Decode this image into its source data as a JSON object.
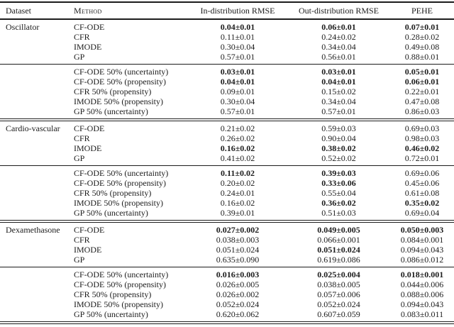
{
  "page": {
    "background_color": "#ffffff",
    "text_color": "#1c1c1c"
  },
  "table": {
    "headers": [
      {
        "label": "Dataset",
        "smallcaps": false
      },
      {
        "label": "Method",
        "smallcaps": true
      },
      {
        "label": "In-distribution RMSE",
        "smallcaps": false
      },
      {
        "label": "Out-distribution RMSE",
        "smallcaps": false
      },
      {
        "label": "PEHE",
        "smallcaps": false
      }
    ],
    "sections": [
      {
        "dataset": "Oscillator",
        "blocks": [
          {
            "rows": [
              {
                "method": "CF-ODE",
                "values": [
                  "0.04±0.01",
                  "0.06±0.01",
                  "0.07±0.01"
                ],
                "bold": [
                  true,
                  true,
                  true
                ]
              },
              {
                "method": "CFR",
                "values": [
                  "0.11±0.01",
                  "0.24±0.02",
                  "0.28±0.02"
                ],
                "bold": [
                  false,
                  false,
                  false
                ]
              },
              {
                "method": "IMODE",
                "values": [
                  "0.30±0.04",
                  "0.34±0.04",
                  "0.49±0.08"
                ],
                "bold": [
                  false,
                  false,
                  false
                ]
              },
              {
                "method": "GP",
                "values": [
                  "0.57±0.01",
                  "0.56±0.01",
                  "0.88±0.01"
                ],
                "bold": [
                  false,
                  false,
                  false
                ]
              }
            ]
          },
          {
            "rows": [
              {
                "method": "CF-ODE 50% (uncertainty)",
                "values": [
                  "0.03±0.01",
                  "0.03±0.01",
                  "0.05±0.01"
                ],
                "bold": [
                  true,
                  true,
                  true
                ]
              },
              {
                "method": "CF-ODE 50% (propensity)",
                "values": [
                  "0.04±0.01",
                  "0.04±0.01",
                  "0.06±0.01"
                ],
                "bold": [
                  true,
                  true,
                  true
                ]
              },
              {
                "method": "CFR 50% (propensity)",
                "values": [
                  "0.09±0.01",
                  "0.15±0.02",
                  "0.22±0.01"
                ],
                "bold": [
                  false,
                  false,
                  false
                ]
              },
              {
                "method": "IMODE 50% (propensity)",
                "values": [
                  "0.30±0.04",
                  "0.34±0.04",
                  "0.47±0.08"
                ],
                "bold": [
                  false,
                  false,
                  false
                ]
              },
              {
                "method": "GP 50% (uncertainty)",
                "values": [
                  "0.57±0.01",
                  "0.57±0.01",
                  "0.86±0.03"
                ],
                "bold": [
                  false,
                  false,
                  false
                ]
              }
            ]
          }
        ]
      },
      {
        "dataset": "Cardio-vascular",
        "blocks": [
          {
            "rows": [
              {
                "method": "CF-ODE",
                "values": [
                  "0.21±0.02",
                  "0.59±0.03",
                  "0.69±0.03"
                ],
                "bold": [
                  false,
                  false,
                  false
                ]
              },
              {
                "method": "CFR",
                "values": [
                  "0.26±0.02",
                  "0.90±0.04",
                  "0.98±0.03"
                ],
                "bold": [
                  false,
                  false,
                  false
                ]
              },
              {
                "method": "IMODE",
                "values": [
                  "0.16±0.02",
                  "0.38±0.02",
                  "0.46±0.02"
                ],
                "bold": [
                  true,
                  true,
                  true
                ]
              },
              {
                "method": "GP",
                "values": [
                  "0.41±0.02",
                  "0.52±0.02",
                  "0.72±0.01"
                ],
                "bold": [
                  false,
                  false,
                  false
                ]
              }
            ]
          },
          {
            "rows": [
              {
                "method": "CF-ODE 50% (uncertainty)",
                "values": [
                  "0.11±0.02",
                  "0.39±0.03",
                  "0.69±0.06"
                ],
                "bold": [
                  true,
                  true,
                  false
                ]
              },
              {
                "method": "CF-ODE 50% (propensity)",
                "values": [
                  "0.20±0.02",
                  "0.33±0.06",
                  "0.45±0.06"
                ],
                "bold": [
                  false,
                  true,
                  false
                ]
              },
              {
                "method": "CFR 50% (propensity)",
                "values": [
                  "0.24±0.01",
                  "0.55±0.04",
                  "0.61±0.08"
                ],
                "bold": [
                  false,
                  false,
                  false
                ]
              },
              {
                "method": "IMODE 50% (propensity)",
                "values": [
                  "0.16±0.02",
                  "0.36±0.02",
                  "0.35±0.02"
                ],
                "bold": [
                  false,
                  true,
                  true
                ]
              },
              {
                "method": "GP 50% (uncertainty)",
                "values": [
                  "0.39±0.01",
                  "0.51±0.03",
                  "0.69±0.04"
                ],
                "bold": [
                  false,
                  false,
                  false
                ]
              }
            ]
          }
        ]
      },
      {
        "dataset": "Dexamethasone",
        "blocks": [
          {
            "rows": [
              {
                "method": "CF-ODE",
                "values": [
                  "0.027±0.002",
                  "0.049±0.005",
                  "0.050±0.003"
                ],
                "bold": [
                  true,
                  true,
                  true
                ]
              },
              {
                "method": "CFR",
                "values": [
                  "0.038±0.003",
                  "0.066±0.001",
                  "0.084±0.001"
                ],
                "bold": [
                  false,
                  false,
                  false
                ]
              },
              {
                "method": "IMODE",
                "values": [
                  "0.051±0.024",
                  "0.051±0.024",
                  "0.094±0.043"
                ],
                "bold": [
                  false,
                  true,
                  false
                ]
              },
              {
                "method": "GP",
                "values": [
                  "0.635±0.090",
                  "0.619±0.086",
                  "0.086±0.012"
                ],
                "bold": [
                  false,
                  false,
                  false
                ]
              }
            ]
          },
          {
            "rows": [
              {
                "method": "CF-ODE 50% (uncertainty)",
                "values": [
                  "0.016±0.003",
                  "0.025±0.004",
                  "0.018±0.001"
                ],
                "bold": [
                  true,
                  true,
                  true
                ]
              },
              {
                "method": "CF-ODE 50% (propensity)",
                "values": [
                  "0.026±0.005",
                  "0.038±0.005",
                  "0.044±0.006"
                ],
                "bold": [
                  false,
                  false,
                  false
                ]
              },
              {
                "method": "CFR 50% (propensity)",
                "values": [
                  "0.026±0.002",
                  "0.057±0.006",
                  "0.088±0.006"
                ],
                "bold": [
                  false,
                  false,
                  false
                ]
              },
              {
                "method": "IMODE 50% (propensity)",
                "values": [
                  "0.052±0.024",
                  "0.052±0.024",
                  "0.094±0.043"
                ],
                "bold": [
                  false,
                  false,
                  false
                ]
              },
              {
                "method": "GP 50% (uncertainty)",
                "values": [
                  "0.620±0.062",
                  "0.607±0.059",
                  "0.083±0.011"
                ],
                "bold": [
                  false,
                  false,
                  false
                ]
              }
            ]
          }
        ]
      }
    ]
  }
}
